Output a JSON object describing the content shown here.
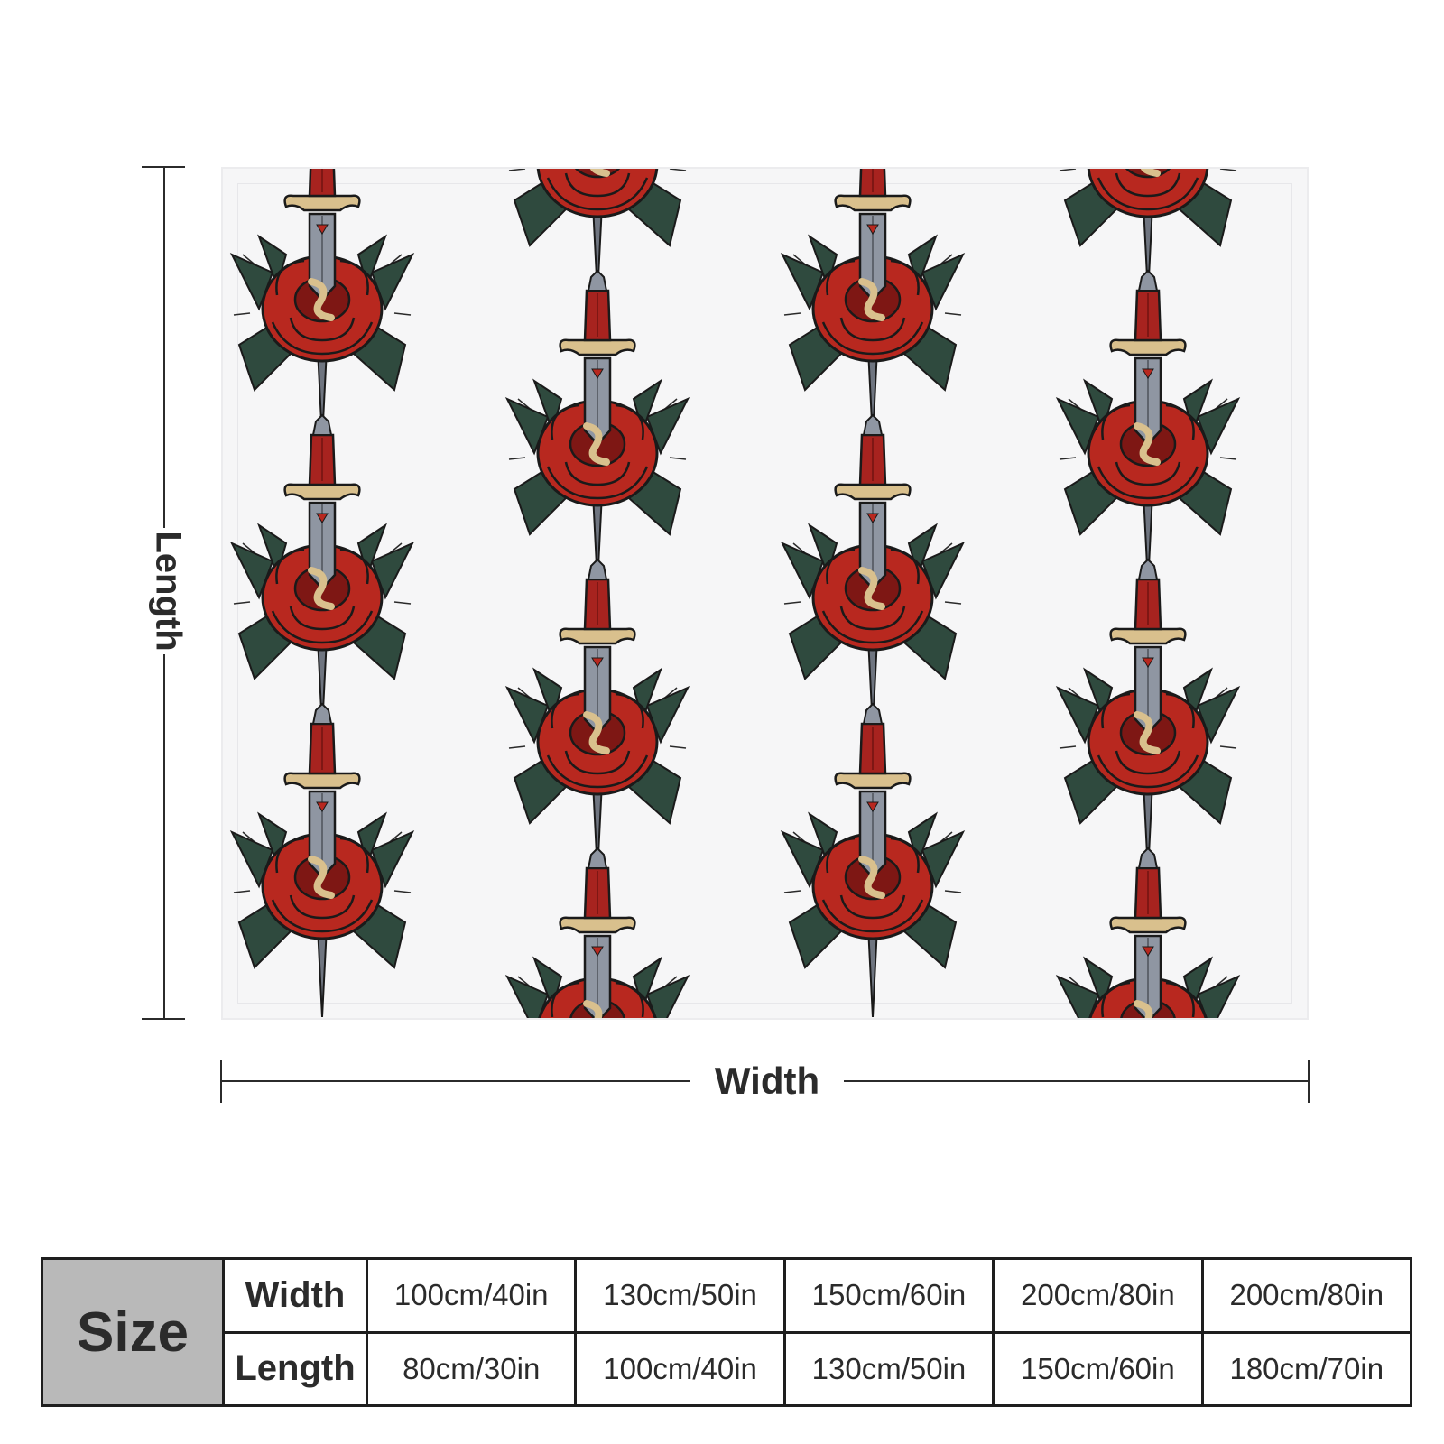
{
  "dimensions": {
    "length_label": "Length",
    "width_label": "Width"
  },
  "pattern": {
    "motif": "dagger-through-rose",
    "colors": {
      "rose": "#b8281f",
      "rose_dark": "#7e1714",
      "leaf": "#2f4a3e",
      "blade": "#8f96a2",
      "hilt": "#d9c08d",
      "grip": "#a7231f"
    }
  },
  "size_table": {
    "size_label": "Size",
    "width_label": "Width",
    "length_label": "Length",
    "widths": [
      "100cm/40in",
      "130cm/50in",
      "150cm/60in",
      "200cm/80in",
      "200cm/80in"
    ],
    "lengths": [
      "80cm/30in",
      "100cm/40in",
      "130cm/50in",
      "150cm/60in",
      "180cm/70in"
    ]
  }
}
